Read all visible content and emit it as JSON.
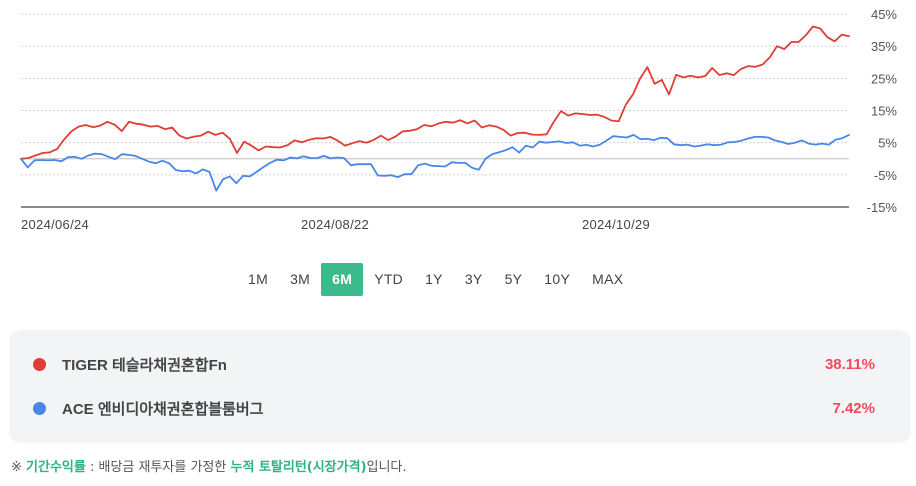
{
  "chart_data": {
    "type": "line",
    "x_labels": [
      "2024/06/24",
      "2024/08/22",
      "2024/10/29"
    ],
    "y_ticks": [
      "45%",
      "35%",
      "25%",
      "15%",
      "5%",
      "-5%",
      "-15%"
    ],
    "ylim": [
      -15,
      45
    ],
    "baseline": 0,
    "grid": "dotted horizontal",
    "series": [
      {
        "name": "TIGER 테슬라채권혼합Fn",
        "color": "#e03d35",
        "values": [
          0.0,
          0.2,
          1.0,
          1.8,
          2.0,
          3.0,
          6.0,
          8.5,
          10.0,
          10.5,
          9.8,
          10.3,
          11.5,
          10.6,
          8.6,
          11.5,
          10.9,
          10.6,
          10.0,
          10.2,
          9.2,
          9.7,
          7.2,
          6.3,
          6.9,
          7.2,
          8.4,
          7.4,
          8.1,
          6.2,
          1.8,
          5.3,
          4.1,
          2.6,
          3.8,
          3.6,
          3.5,
          4.2,
          5.7,
          5.1,
          5.9,
          6.4,
          6.3,
          6.8,
          5.6,
          4.1,
          4.8,
          5.5,
          5.0,
          5.9,
          7.2,
          5.8,
          6.9,
          8.5,
          8.7,
          9.2,
          10.5,
          10.1,
          11.0,
          11.5,
          11.2,
          12.0,
          11.0,
          11.9,
          9.7,
          10.4,
          10.0,
          9.0,
          7.2,
          8.0,
          8.1,
          7.5,
          7.4,
          7.6,
          11.5,
          14.8,
          13.4,
          14.1,
          13.9,
          13.6,
          13.7,
          13.0,
          11.9,
          11.6,
          16.8,
          20.0,
          25.0,
          28.5,
          23.3,
          24.5,
          20.0,
          26.1,
          25.3,
          25.8,
          25.3,
          25.7,
          28.2,
          26.0,
          26.6,
          26.0,
          27.9,
          28.8,
          28.6,
          29.3,
          31.5,
          35.0,
          34.1,
          36.3,
          36.3,
          38.4,
          41.1,
          40.5,
          37.8,
          36.5,
          38.6,
          38.11
        ]
      },
      {
        "name": "ACE 엔비디아채권혼합블룸버그",
        "color": "#4a86e8",
        "values": [
          0.0,
          -2.7,
          -0.5,
          -0.4,
          -0.5,
          -0.4,
          -0.8,
          0.5,
          0.6,
          0.0,
          1.0,
          1.6,
          1.4,
          0.6,
          -0.1,
          1.4,
          1.2,
          0.9,
          0.0,
          -0.9,
          -1.4,
          -0.6,
          -1.4,
          -3.5,
          -3.9,
          -3.7,
          -4.6,
          -3.3,
          -4.1,
          -9.9,
          -6.4,
          -5.5,
          -7.6,
          -5.3,
          -5.5,
          -4.1,
          -2.6,
          -1.3,
          -0.3,
          -0.5,
          0.4,
          0.1,
          0.8,
          0.2,
          0.2,
          0.9,
          0.1,
          0.4,
          0.2,
          -2.0,
          -1.7,
          -1.7,
          -1.7,
          -5.2,
          -5.3,
          -5.1,
          -5.7,
          -4.8,
          -4.8,
          -2.0,
          -1.5,
          -2.2,
          -2.3,
          -2.4,
          -1.1,
          -1.3,
          -1.3,
          -2.8,
          -3.4,
          0.0,
          1.4,
          2.0,
          2.7,
          3.6,
          1.9,
          4.1,
          3.5,
          5.3,
          5.0,
          5.2,
          5.4,
          4.9,
          5.1,
          4.1,
          4.3,
          3.8,
          4.4,
          5.7,
          7.0,
          6.8,
          6.6,
          7.4,
          6.1,
          6.2,
          5.8,
          6.5,
          6.4,
          4.5,
          4.2,
          4.4,
          3.8,
          4.1,
          4.5,
          4.2,
          4.4,
          5.1,
          5.2,
          5.6,
          6.3,
          6.8,
          6.8,
          6.6,
          5.7,
          5.2,
          4.6,
          5.0,
          5.7,
          4.7,
          4.4,
          4.7,
          4.4,
          5.9,
          6.4,
          7.42
        ]
      }
    ]
  },
  "ranges": [
    "1M",
    "3M",
    "6M",
    "YTD",
    "1Y",
    "3Y",
    "5Y",
    "10Y",
    "MAX"
  ],
  "active_range": "6M",
  "summary": [
    {
      "name": "TIGER 테슬라채권혼합Fn",
      "return": "38.11%",
      "color": "#e03d35"
    },
    {
      "name": "ACE 엔비디아채권혼합블룸버그",
      "return": "7.42%",
      "color": "#4a86e8"
    }
  ],
  "footnote": {
    "prefix": "※ ",
    "term": "기간수익률",
    "middle": " : 배당금 재투자를 가정한 ",
    "highlight": "누적 토탈리턴(시장가격)",
    "suffix": "입니다."
  }
}
